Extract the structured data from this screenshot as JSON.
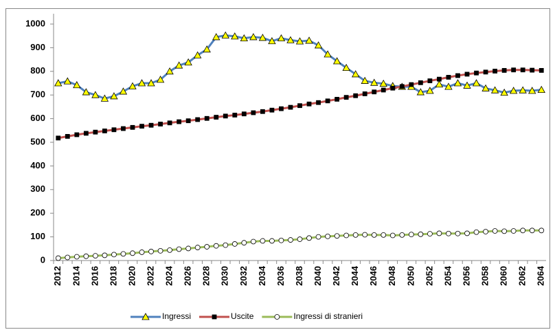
{
  "chart_data": {
    "type": "line",
    "categories": [
      "2012",
      null,
      "2014",
      null,
      "2016",
      null,
      "2018",
      null,
      "2020",
      null,
      "2022",
      null,
      "2024",
      null,
      "2026",
      null,
      "2028",
      null,
      "2030",
      null,
      "2032",
      null,
      "2034",
      null,
      "2036",
      null,
      "2038",
      null,
      "2040",
      null,
      "2042",
      null,
      "2044",
      null,
      "2046",
      null,
      "2048",
      null,
      "2050",
      null,
      "2052",
      null,
      "2054",
      null,
      "2056",
      null,
      "2058",
      null,
      "2060",
      null,
      "2062",
      null,
      "2064"
    ],
    "series": [
      {
        "name": "Ingressi",
        "color": "#4f81bd",
        "marker": "triangle",
        "marker_color": "#ffff00",
        "values": [
          750,
          758,
          742,
          712,
          700,
          685,
          695,
          715,
          737,
          750,
          750,
          765,
          800,
          825,
          838,
          868,
          893,
          945,
          952,
          948,
          940,
          945,
          942,
          928,
          940,
          932,
          927,
          930,
          910,
          872,
          843,
          815,
          788,
          760,
          752,
          748,
          738,
          735,
          735,
          712,
          718,
          745,
          735,
          750,
          740,
          750,
          728,
          720,
          710,
          718,
          720,
          718,
          722
        ]
      },
      {
        "name": "Uscite",
        "color": "#c0504d",
        "marker": "square",
        "marker_color": "#000000",
        "values": [
          518,
          525,
          532,
          538,
          543,
          548,
          553,
          558,
          563,
          568,
          572,
          577,
          582,
          587,
          591,
          596,
          601,
          606,
          611,
          615,
          620,
          625,
          630,
          636,
          642,
          648,
          655,
          662,
          668,
          675,
          682,
          690,
          697,
          705,
          713,
          721,
          729,
          736,
          744,
          752,
          760,
          767,
          775,
          782,
          788,
          793,
          797,
          801,
          804,
          806,
          806,
          805,
          804
        ]
      },
      {
        "name": "Ingressi di stranieri",
        "color": "#9bbb59",
        "marker": "circle",
        "marker_color": "#ffffff",
        "values": [
          10,
          13,
          16,
          18,
          20,
          22,
          25,
          28,
          31,
          35,
          38,
          41,
          44,
          48,
          51,
          55,
          58,
          62,
          65,
          70,
          75,
          80,
          83,
          83,
          85,
          87,
          90,
          95,
          100,
          102,
          104,
          106,
          108,
          109,
          108,
          108,
          106,
          108,
          110,
          111,
          113,
          115,
          114,
          114,
          115,
          120,
          122,
          125,
          124,
          125,
          127,
          127,
          127
        ]
      }
    ],
    "ylim": [
      0,
      1000
    ],
    "yticks": [
      0,
      100,
      200,
      300,
      400,
      500,
      600,
      700,
      800,
      900,
      1000
    ],
    "grid": false,
    "legend": "bottom"
  }
}
